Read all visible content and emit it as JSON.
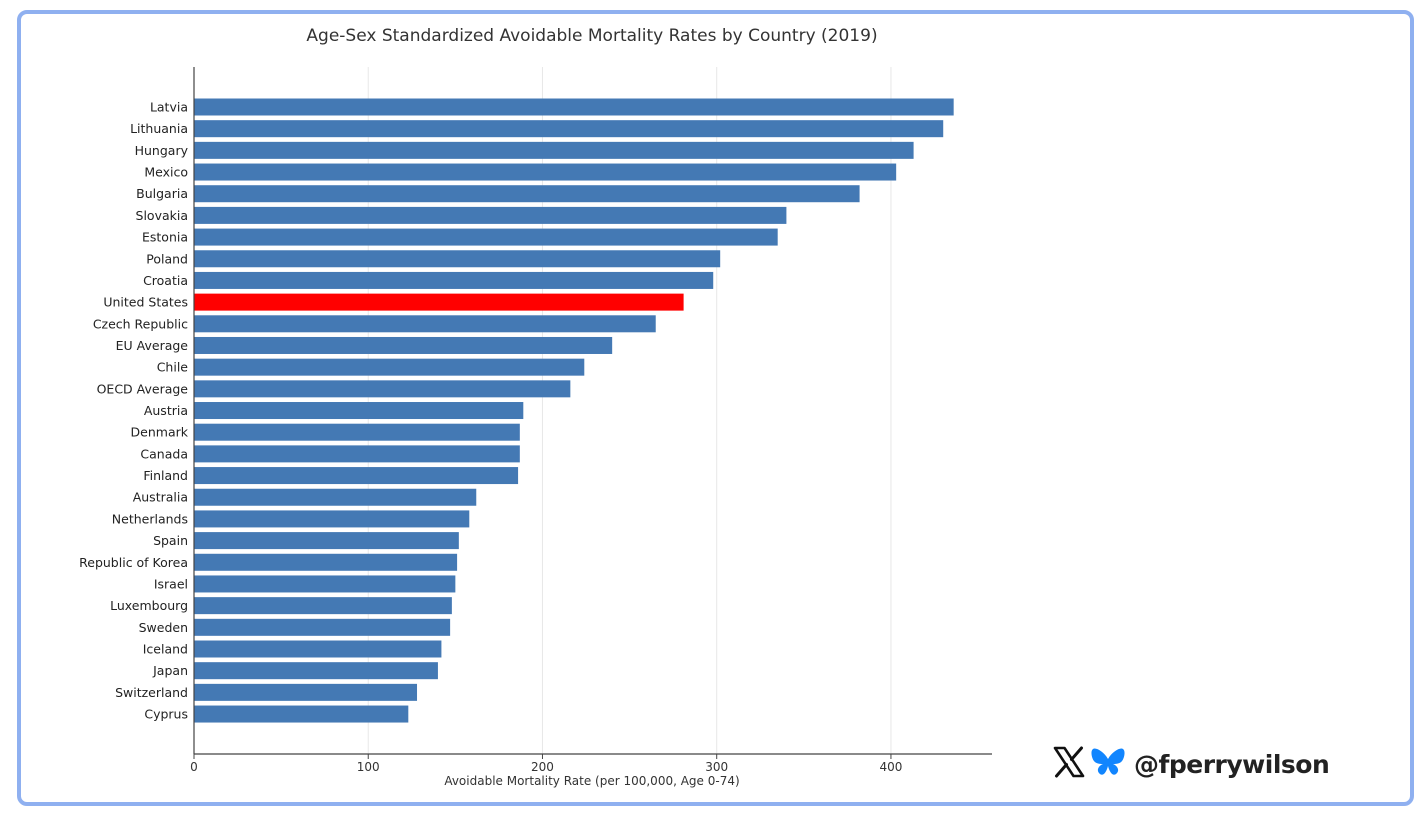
{
  "chart_data": {
    "type": "bar",
    "orientation": "horizontal",
    "title": "Age-Sex Standardized Avoidable Mortality Rates by Country (2019)",
    "xlabel": "Avoidable Mortality Rate (per 100,000, Age 0-74)",
    "ylabel": "",
    "xlim": [
      0,
      458
    ],
    "xticks": [
      0,
      100,
      200,
      300,
      400
    ],
    "grid": "vertical",
    "categories": [
      "Latvia",
      "Lithuania",
      "Hungary",
      "Mexico",
      "Bulgaria",
      "Slovakia",
      "Estonia",
      "Poland",
      "Croatia",
      "United States",
      "Czech Republic",
      "EU Average",
      "Chile",
      "OECD Average",
      "Austria",
      "Denmark",
      "Canada",
      "Finland",
      "Australia",
      "Netherlands",
      "Spain",
      "Republic of Korea",
      "Israel",
      "Luxembourg",
      "Sweden",
      "Iceland",
      "Japan",
      "Switzerland",
      "Cyprus"
    ],
    "values": [
      436,
      430,
      413,
      403,
      382,
      340,
      335,
      302,
      298,
      281,
      265,
      240,
      224,
      216,
      189,
      187,
      187,
      186,
      162,
      158,
      152,
      151,
      150,
      148,
      147,
      142,
      140,
      128,
      123
    ],
    "highlight": "United States",
    "colors": {
      "bar": "#4479b4",
      "highlight": "#ff0000",
      "grid": "#e8e8e8",
      "axis": "#444444",
      "frame": "#8fb0f0"
    }
  },
  "watermark": {
    "icons": [
      "x-logo-icon",
      "butterfly-icon"
    ],
    "handle": "@fperrywilson",
    "colors": {
      "x_logo": "#111111",
      "butterfly": "#1185fe"
    }
  }
}
